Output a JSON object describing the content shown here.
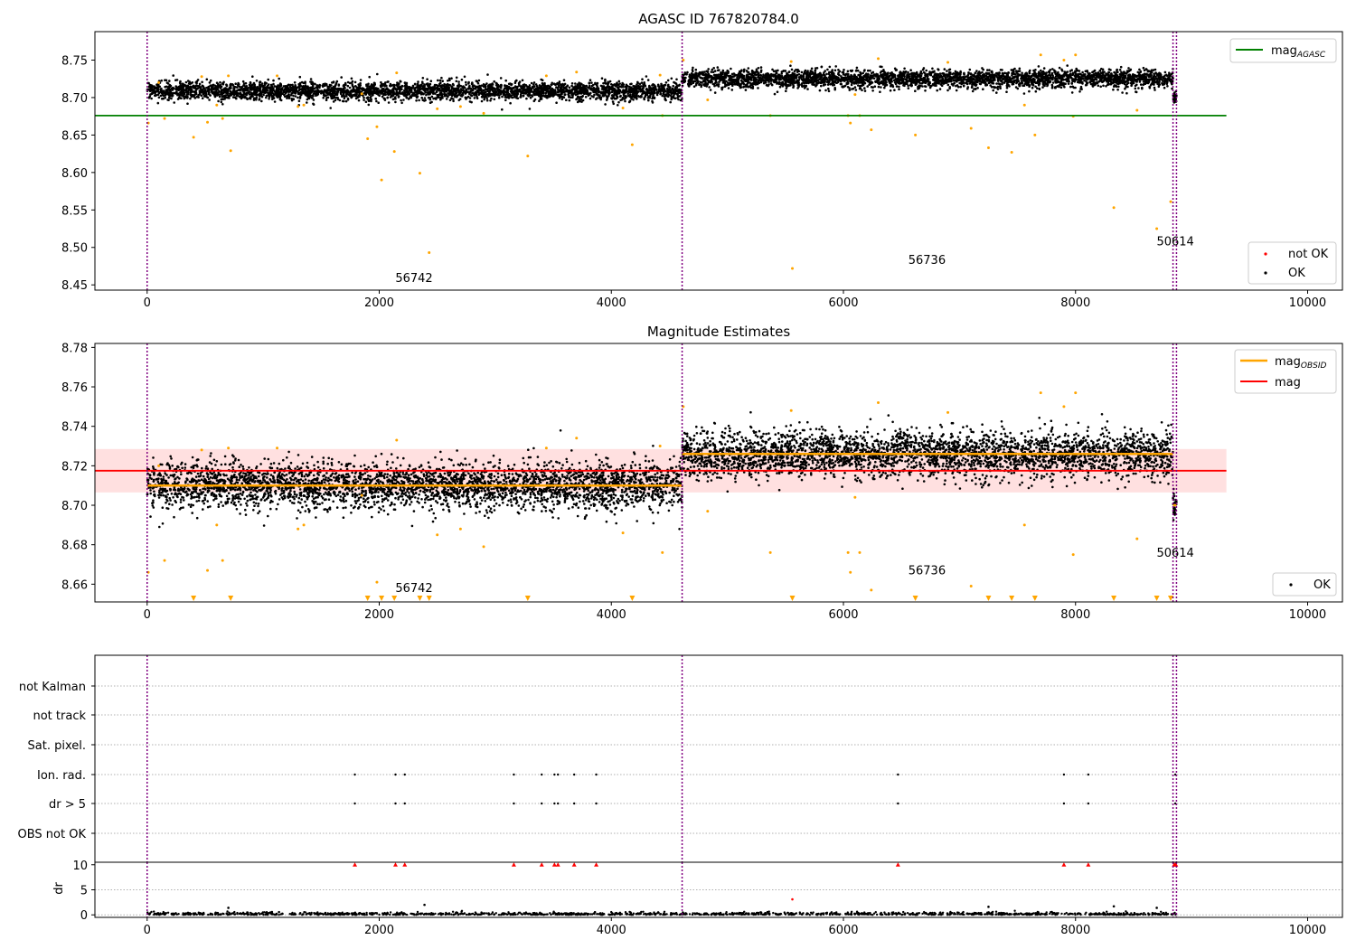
{
  "figure": {
    "title_top": "AGASC ID 767820784.0",
    "title_mid": "Magnitude Estimates"
  },
  "colors": {
    "ok": "#000000",
    "not_ok": "#ff0000",
    "outlier": "#ffa500",
    "agasc_line": "#008000",
    "mag_line": "#ff0000",
    "mag_band": "#ffcccc",
    "obs_boundary": "#800080",
    "grid": "#b0b0b0"
  },
  "chart_data": [
    {
      "id": "agasc",
      "type": "scatter",
      "title": "AGASC ID 767820784.0",
      "xlim": [
        -450,
        10300
      ],
      "ylim": [
        8.443,
        8.788
      ],
      "xticks": [
        0,
        2000,
        4000,
        6000,
        8000,
        10000
      ],
      "xtick_labels": [
        "0",
        "2000",
        "4000",
        "6000",
        "8000",
        "10000"
      ],
      "yticks": [
        8.45,
        8.5,
        8.55,
        8.6,
        8.65,
        8.7,
        8.75
      ],
      "ytick_labels": [
        "8.45",
        "8.50",
        "8.55",
        "8.60",
        "8.65",
        "8.70",
        "8.75"
      ],
      "hline": {
        "name": "mag_AGASC",
        "value": 8.676,
        "x_range": [
          -450,
          9300
        ]
      },
      "obs_boundaries": [
        0,
        4610,
        8840,
        8870
      ],
      "obsid_labels": [
        {
          "text": "56742",
          "x": 2300,
          "y": 8.454
        },
        {
          "text": "56736",
          "x": 6720,
          "y": 8.478
        },
        {
          "text": "50614",
          "x": 8860,
          "y": 8.503
        }
      ],
      "segments": [
        {
          "x0": 0,
          "x1": 4610,
          "mean": 8.709,
          "spread": 0.0085
        },
        {
          "x0": 4610,
          "x1": 8840,
          "mean": 8.725,
          "spread": 0.0085
        },
        {
          "x0": 8840,
          "x1": 8870,
          "mean": 8.7,
          "spread": 0.006
        }
      ],
      "outliers": [
        [
          10,
          8.666
        ],
        [
          100,
          8.72
        ],
        [
          150,
          8.672
        ],
        [
          400,
          8.647
        ],
        [
          470,
          8.728
        ],
        [
          520,
          8.667
        ],
        [
          600,
          8.69
        ],
        [
          650,
          8.672
        ],
        [
          700,
          8.729
        ],
        [
          720,
          8.629
        ],
        [
          1120,
          8.729
        ],
        [
          1300,
          8.688
        ],
        [
          1350,
          8.69
        ],
        [
          1850,
          8.705
        ],
        [
          1900,
          8.645
        ],
        [
          1980,
          8.661
        ],
        [
          2020,
          8.59
        ],
        [
          2130,
          8.628
        ],
        [
          2150,
          8.733
        ],
        [
          2350,
          8.599
        ],
        [
          2430,
          8.493
        ],
        [
          2500,
          8.685
        ],
        [
          2700,
          8.688
        ],
        [
          2900,
          8.679
        ],
        [
          3280,
          8.622
        ],
        [
          3440,
          8.729
        ],
        [
          3700,
          8.734
        ],
        [
          4100,
          8.686
        ],
        [
          4180,
          8.637
        ],
        [
          4420,
          8.73
        ],
        [
          4440,
          8.676
        ],
        [
          4620,
          8.75
        ],
        [
          4830,
          8.697
        ],
        [
          5370,
          8.676
        ],
        [
          5550,
          8.748
        ],
        [
          5560,
          8.472
        ],
        [
          6040,
          8.676
        ],
        [
          6060,
          8.666
        ],
        [
          6100,
          8.704
        ],
        [
          6140,
          8.676
        ],
        [
          6240,
          8.657
        ],
        [
          6300,
          8.752
        ],
        [
          6620,
          8.65
        ],
        [
          6900,
          8.747
        ],
        [
          7100,
          8.659
        ],
        [
          7250,
          8.633
        ],
        [
          7450,
          8.627
        ],
        [
          7560,
          8.69
        ],
        [
          7650,
          8.65
        ],
        [
          7700,
          8.757
        ],
        [
          7900,
          8.75
        ],
        [
          7980,
          8.675
        ],
        [
          8000,
          8.757
        ],
        [
          8330,
          8.553
        ],
        [
          8530,
          8.683
        ],
        [
          8700,
          8.525
        ],
        [
          8820,
          8.561
        ]
      ],
      "legend": [
        {
          "name": "mag_AGASC",
          "position": "upper right"
        },
        {
          "entries": [
            "not OK",
            "OK"
          ],
          "position": "lower right"
        }
      ]
    },
    {
      "id": "mag",
      "type": "scatter",
      "title": "Magnitude Estimates",
      "xlim": [
        -450,
        10300
      ],
      "ylim": [
        8.651,
        8.782
      ],
      "xticks": [
        0,
        2000,
        4000,
        6000,
        8000,
        10000
      ],
      "xtick_labels": [
        "0",
        "2000",
        "4000",
        "6000",
        "8000",
        "10000"
      ],
      "yticks": [
        8.66,
        8.68,
        8.7,
        8.72,
        8.74,
        8.76,
        8.78
      ],
      "ytick_labels": [
        "8.66",
        "8.68",
        "8.70",
        "8.72",
        "8.74",
        "8.76",
        "8.78"
      ],
      "mag": {
        "name": "mag",
        "value": 8.7175,
        "band": [
          8.7065,
          8.7285
        ],
        "x_range": [
          -450,
          9300
        ]
      },
      "mag_obsid": [
        {
          "x0": 0,
          "x1": 4610,
          "value": 8.71
        },
        {
          "x0": 4610,
          "x1": 8840,
          "value": 8.726
        },
        {
          "x0": 8840,
          "x1": 8870,
          "value": 8.7
        }
      ],
      "obs_boundaries": [
        0,
        4610,
        8840,
        8870
      ],
      "obsid_labels": [
        {
          "text": "56742",
          "x": 2300,
          "y": 8.656
        },
        {
          "text": "56736",
          "x": 6720,
          "y": 8.665
        },
        {
          "text": "50614",
          "x": 8860,
          "y": 8.674
        }
      ],
      "triangle_markers_x": [
        400,
        720,
        1900,
        2020,
        2130,
        2350,
        2430,
        3280,
        4180,
        5560,
        6620,
        7250,
        7450,
        7650,
        8330,
        8700,
        8820
      ],
      "legend": [
        {
          "entries": [
            "mag_OBSID",
            "mag"
          ],
          "position": "upper right"
        },
        {
          "entries": [
            "OK"
          ],
          "position": "lower right"
        }
      ]
    },
    {
      "id": "flags",
      "type": "scatter",
      "xlim": [
        -450,
        10300
      ],
      "xticks": [
        0,
        2000,
        4000,
        6000,
        8000,
        10000
      ],
      "xtick_labels": [
        "0",
        "2000",
        "4000",
        "6000",
        "8000",
        "10000"
      ],
      "categories": [
        "not Kalman",
        "not track",
        "Sat. pixel.",
        "Ion. rad.",
        "dr > 5",
        "OBS not OK"
      ],
      "flag_points": {
        "Ion. rad.": [
          1790,
          2140,
          2220,
          3160,
          3400,
          3510,
          3540,
          3680,
          3870,
          6470,
          7900,
          8110,
          8860
        ],
        "dr > 5": [
          1790,
          2140,
          2220,
          3160,
          3400,
          3510,
          3540,
          3680,
          3870,
          6470,
          7900,
          8110,
          8860
        ]
      },
      "obs_boundaries": [
        0,
        4610,
        8840,
        8870
      ]
    },
    {
      "id": "dr",
      "type": "scatter",
      "ylabel": "dr",
      "xlim": [
        -450,
        10300
      ],
      "ylim": [
        -0.5,
        10.5
      ],
      "yticks": [
        0,
        5,
        10
      ],
      "ytick_labels": [
        "0",
        "5",
        "10"
      ],
      "xticks": [
        0,
        2000,
        4000,
        6000,
        8000,
        10000
      ],
      "xtick_labels": [
        "0",
        "2000",
        "4000",
        "6000",
        "8000",
        "10000"
      ],
      "clipped_at_10_x": [
        1790,
        2140,
        2220,
        3160,
        3400,
        3510,
        3540,
        3680,
        3870,
        6470,
        7900,
        8110,
        8850,
        8860,
        8865
      ],
      "large_values": [
        [
          700,
          1.4
        ],
        [
          2390,
          2.0
        ],
        [
          5560,
          3.1
        ],
        [
          7250,
          1.6
        ],
        [
          8330,
          1.7
        ],
        [
          8700,
          1.4
        ]
      ],
      "obs_boundaries": [
        0,
        4610,
        8840,
        8870
      ]
    }
  ]
}
